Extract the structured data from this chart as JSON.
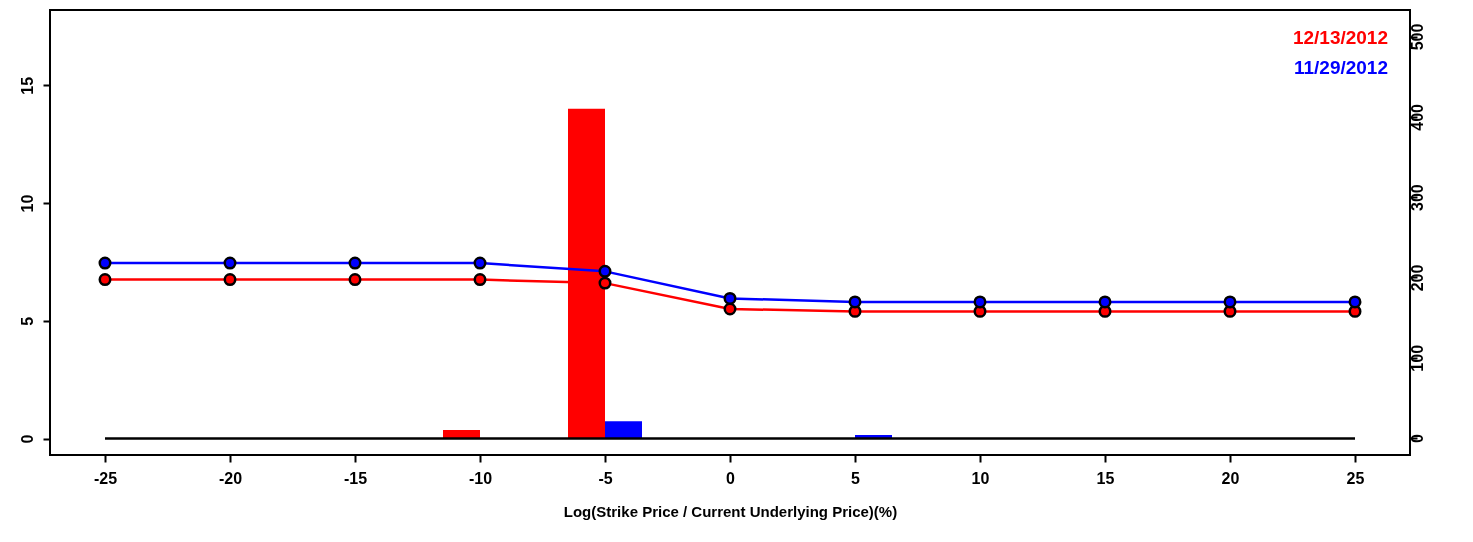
{
  "chart_data": {
    "type": "line",
    "xlabel": "Log(Strike Price / Current Underlying Price)(%)",
    "xlim": [
      -27,
      27
    ],
    "xticks": [
      -25,
      -20,
      -15,
      -10,
      -5,
      0,
      5,
      10,
      15,
      20,
      25
    ],
    "ylim": [
      -0.7,
      18.2
    ],
    "yticks": [
      0,
      5,
      10,
      15
    ],
    "y2lim": [
      -21,
      533
    ],
    "y2ticks": [
      0,
      100,
      200,
      300,
      400,
      500
    ],
    "marker": "circle",
    "grid": false,
    "legend": "top right",
    "series": [
      {
        "type": "bar",
        "axis": "y2",
        "color": "#ff0000",
        "x": [
          -10,
          -5
        ],
        "values": [
          10,
          410
        ]
      },
      {
        "type": "bar",
        "axis": "y2",
        "color": "#0000ff",
        "x": [
          -5,
          5
        ],
        "values": [
          21,
          4
        ]
      },
      {
        "marker": "none",
        "color": "#000000",
        "x": [
          -25,
          -20,
          -15,
          -10,
          -5,
          0,
          5,
          10,
          15,
          20,
          25
        ],
        "values": [
          0,
          0,
          0,
          0,
          0,
          0,
          0,
          0,
          0,
          0,
          0
        ]
      },
      {
        "name": "12/13/2012",
        "color": "#ff0000",
        "x": [
          -25,
          -20,
          -15,
          -10,
          -5,
          0,
          5,
          10,
          15,
          20,
          25
        ],
        "values": [
          6.75,
          6.75,
          6.75,
          6.75,
          6.6,
          5.5,
          5.4,
          5.4,
          5.4,
          5.4,
          5.4
        ]
      },
      {
        "name": "11/29/2012",
        "color": "#0000ff",
        "x": [
          -25,
          -20,
          -15,
          -10,
          -5,
          0,
          5,
          10,
          15,
          20,
          25
        ],
        "values": [
          7.45,
          7.45,
          7.45,
          7.45,
          7.1,
          5.95,
          5.8,
          5.8,
          5.8,
          5.8,
          5.8
        ]
      }
    ]
  }
}
